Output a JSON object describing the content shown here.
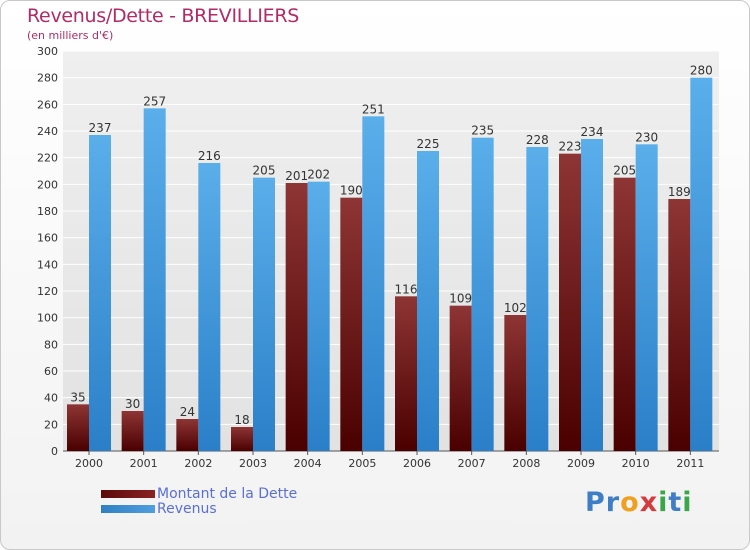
{
  "chart_data": {
    "type": "bar",
    "title": "Revenus/Dette - BREVILLIERS",
    "subtitle": "(en milliers d'€)",
    "categories": [
      "2000",
      "2001",
      "2002",
      "2003",
      "2004",
      "2005",
      "2006",
      "2007",
      "2008",
      "2009",
      "2010",
      "2011"
    ],
    "series": [
      {
        "name": "Montant de la Dette",
        "color": "#8b2323",
        "values": [
          35,
          30,
          24,
          18,
          201,
          190,
          116,
          109,
          102,
          223,
          205,
          189
        ]
      },
      {
        "name": "Revenus",
        "color": "#4f9fe0",
        "values": [
          237,
          257,
          216,
          205,
          202,
          251,
          225,
          235,
          228,
          234,
          230,
          280
        ]
      }
    ],
    "ylim": [
      0,
      300
    ],
    "yticks": [
      0,
      20,
      40,
      60,
      80,
      100,
      120,
      140,
      160,
      180,
      200,
      220,
      240,
      260,
      280,
      300
    ],
    "grid": true,
    "legend": "bottom-left"
  },
  "logo": {
    "letters": [
      {
        "ch": "P",
        "color": "#3f7ec6"
      },
      {
        "ch": "r",
        "color": "#3f7ec6"
      },
      {
        "ch": "o",
        "color": "#f0a020"
      },
      {
        "ch": "x",
        "color": "#d23c3c"
      },
      {
        "ch": "i",
        "color": "#3aa64a"
      },
      {
        "ch": "t",
        "color": "#3f7ec6"
      },
      {
        "ch": "i",
        "color": "#3aa64a"
      }
    ]
  }
}
